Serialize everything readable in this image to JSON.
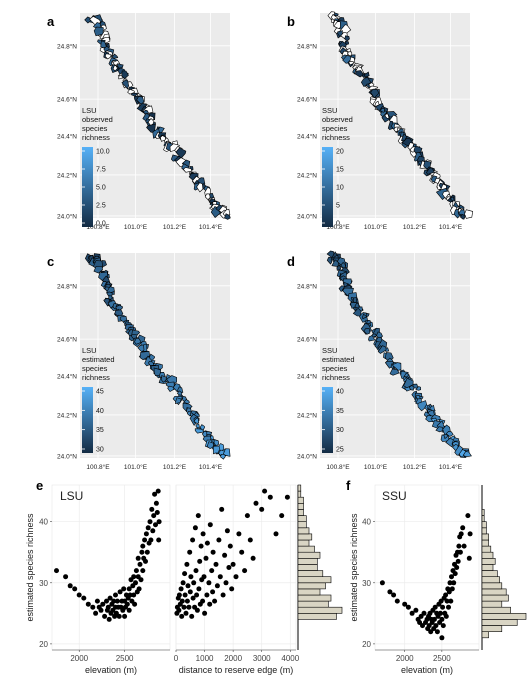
{
  "map_panels": [
    {
      "letter": "a",
      "legend_lines": [
        "LSU",
        "observed",
        "species",
        "richness"
      ],
      "legend_ticks": [
        "10.0",
        "7.5",
        "5.0",
        "2.5",
        "0.0"
      ]
    },
    {
      "letter": "b",
      "legend_lines": [
        "SSU",
        "observed",
        "species",
        "richness"
      ],
      "legend_ticks": [
        "20",
        "15",
        "10",
        "5",
        "0"
      ]
    },
    {
      "letter": "c",
      "legend_lines": [
        "LSU",
        "estimated",
        "species",
        "richness"
      ],
      "legend_ticks": [
        "45",
        "40",
        "35",
        "30"
      ]
    },
    {
      "letter": "d",
      "legend_lines": [
        "SSU",
        "estimated",
        "species",
        "richness"
      ],
      "legend_ticks": [
        "40",
        "35",
        "30",
        "25"
      ]
    }
  ],
  "map_axes": {
    "y_ticks": [
      "24.8°N",
      "24.6°N",
      "24.4°N",
      "24.2°N",
      "24.0°N"
    ],
    "x_ticks": [
      "100.8°E",
      "101.0°E",
      "101.2°E",
      "101.4°E"
    ]
  },
  "colors": {
    "panel_bg": "#ebebeb",
    "grid": "#ffffff",
    "ramp_low": "#132b43",
    "ramp_high": "#56b1f7",
    "hist_fill": "#d9d5c4",
    "points": "#000000"
  },
  "panel_e": {
    "letter": "e",
    "title": "LSU",
    "ylabel": "estimated species richness"
  },
  "panel_f": {
    "letter": "f",
    "title": "SSU"
  },
  "chart_data": [
    {
      "type": "scatter",
      "panel": "e-elevation",
      "title": "LSU",
      "xlabel": "elevation (m)",
      "ylabel": "estimated species richness",
      "xlim": [
        1700,
        3000
      ],
      "ylim": [
        19,
        46
      ],
      "x_ticks": [
        "2000",
        "2500"
      ],
      "y_ticks": [
        "20",
        "30",
        "40"
      ],
      "points": [
        [
          1750,
          32
        ],
        [
          1850,
          31
        ],
        [
          1900,
          29.5
        ],
        [
          1950,
          29
        ],
        [
          2000,
          28
        ],
        [
          2050,
          27.5
        ],
        [
          2100,
          26.5
        ],
        [
          2150,
          26
        ],
        [
          2180,
          25
        ],
        [
          2200,
          27
        ],
        [
          2220,
          26
        ],
        [
          2240,
          25.5
        ],
        [
          2260,
          26.5
        ],
        [
          2280,
          24.5
        ],
        [
          2300,
          27
        ],
        [
          2310,
          25.5
        ],
        [
          2320,
          26
        ],
        [
          2330,
          24
        ],
        [
          2340,
          27.5
        ],
        [
          2350,
          25
        ],
        [
          2360,
          26.5
        ],
        [
          2370,
          25.5
        ],
        [
          2380,
          27
        ],
        [
          2390,
          24.5
        ],
        [
          2400,
          26
        ],
        [
          2400,
          28
        ],
        [
          2410,
          25
        ],
        [
          2420,
          27
        ],
        [
          2430,
          26
        ],
        [
          2440,
          24.5
        ],
        [
          2450,
          28.5
        ],
        [
          2460,
          26
        ],
        [
          2470,
          27
        ],
        [
          2480,
          25.5
        ],
        [
          2490,
          29
        ],
        [
          2500,
          27
        ],
        [
          2500,
          24.5
        ],
        [
          2510,
          26
        ],
        [
          2520,
          28
        ],
        [
          2530,
          26.5
        ],
        [
          2540,
          27.5
        ],
        [
          2550,
          29
        ],
        [
          2550,
          25.5
        ],
        [
          2560,
          28
        ],
        [
          2570,
          30.5
        ],
        [
          2580,
          27
        ],
        [
          2590,
          29.5
        ],
        [
          2600,
          28
        ],
        [
          2600,
          31
        ],
        [
          2610,
          26.5
        ],
        [
          2620,
          30
        ],
        [
          2630,
          32
        ],
        [
          2640,
          28.5
        ],
        [
          2650,
          31
        ],
        [
          2650,
          34
        ],
        [
          2660,
          29
        ],
        [
          2670,
          33
        ],
        [
          2680,
          30.5
        ],
        [
          2690,
          35
        ],
        [
          2700,
          32
        ],
        [
          2700,
          36
        ],
        [
          2710,
          34
        ],
        [
          2720,
          37
        ],
        [
          2730,
          33.5
        ],
        [
          2740,
          38
        ],
        [
          2750,
          35
        ],
        [
          2760,
          39
        ],
        [
          2770,
          36.5
        ],
        [
          2780,
          40
        ],
        [
          2790,
          37
        ],
        [
          2800,
          42
        ],
        [
          2810,
          38.5
        ],
        [
          2820,
          41
        ],
        [
          2830,
          44.5
        ],
        [
          2840,
          39.5
        ],
        [
          2850,
          43
        ],
        [
          2860,
          41.5
        ],
        [
          2870,
          45
        ],
        [
          2875,
          37
        ],
        [
          2880,
          40
        ]
      ]
    },
    {
      "type": "scatter",
      "panel": "e-distance",
      "xlabel": "distance to reserve edge (m)",
      "ylabel": "estimated species richness",
      "xlim": [
        0,
        4200
      ],
      "ylim": [
        19,
        46
      ],
      "x_ticks": [
        "0",
        "1000",
        "2000",
        "3000",
        "4000"
      ],
      "points": [
        [
          30,
          25
        ],
        [
          50,
          26
        ],
        [
          80,
          27.5
        ],
        [
          100,
          25.5
        ],
        [
          120,
          28
        ],
        [
          150,
          26.5
        ],
        [
          180,
          29
        ],
        [
          200,
          24.5
        ],
        [
          220,
          27
        ],
        [
          250,
          30
        ],
        [
          280,
          26
        ],
        [
          300,
          31.5
        ],
        [
          320,
          28
        ],
        [
          350,
          25
        ],
        [
          380,
          33
        ],
        [
          400,
          27
        ],
        [
          420,
          29.5
        ],
        [
          450,
          26
        ],
        [
          480,
          35
        ],
        [
          500,
          28.5
        ],
        [
          520,
          31
        ],
        [
          550,
          24.5
        ],
        [
          580,
          37
        ],
        [
          600,
          27.5
        ],
        [
          620,
          30
        ],
        [
          650,
          26
        ],
        [
          680,
          39
        ],
        [
          700,
          32
        ],
        [
          720,
          28
        ],
        [
          750,
          25.5
        ],
        [
          780,
          41
        ],
        [
          800,
          29
        ],
        [
          830,
          33.5
        ],
        [
          850,
          26.5
        ],
        [
          880,
          36
        ],
        [
          900,
          30.5
        ],
        [
          930,
          27
        ],
        [
          950,
          38
        ],
        [
          980,
          31
        ],
        [
          1000,
          25
        ],
        [
          1050,
          34
        ],
        [
          1080,
          28
        ],
        [
          1100,
          36.5
        ],
        [
          1150,
          30
        ],
        [
          1180,
          26.5
        ],
        [
          1200,
          39.5
        ],
        [
          1250,
          32
        ],
        [
          1280,
          28.5
        ],
        [
          1300,
          35
        ],
        [
          1350,
          27
        ],
        [
          1400,
          33
        ],
        [
          1450,
          29.5
        ],
        [
          1500,
          37
        ],
        [
          1550,
          31
        ],
        [
          1600,
          42
        ],
        [
          1650,
          28
        ],
        [
          1700,
          34.5
        ],
        [
          1750,
          30
        ],
        [
          1800,
          38.5
        ],
        [
          1850,
          32.5
        ],
        [
          1900,
          36
        ],
        [
          1950,
          29
        ],
        [
          2000,
          33
        ],
        [
          2100,
          31
        ],
        [
          2200,
          38
        ],
        [
          2300,
          35
        ],
        [
          2400,
          32
        ],
        [
          2500,
          41
        ],
        [
          2600,
          37
        ],
        [
          2700,
          34
        ],
        [
          2800,
          43
        ],
        [
          3000,
          42
        ],
        [
          3100,
          45
        ],
        [
          3300,
          44
        ],
        [
          3500,
          38
        ],
        [
          3700,
          41
        ],
        [
          3900,
          44
        ]
      ]
    },
    {
      "type": "bar",
      "panel": "e-marginal-histogram",
      "orientation": "horizontal",
      "bins": [
        24,
        25,
        26,
        27,
        28,
        29,
        30,
        31,
        32,
        33,
        34,
        35,
        36,
        37,
        38,
        39,
        40,
        41,
        42,
        43,
        44,
        45
      ],
      "counts": [
        14,
        16,
        11,
        12,
        8,
        10,
        12,
        9,
        7,
        7,
        8,
        6,
        4,
        5,
        4,
        3,
        3,
        2,
        2,
        2,
        1,
        1
      ]
    },
    {
      "type": "scatter",
      "panel": "f-elevation",
      "title": "SSU",
      "xlabel": "elevation (m)",
      "ylabel": "estimated species richness",
      "xlim": [
        1600,
        3000
      ],
      "ylim": [
        19,
        46
      ],
      "x_ticks": [
        "2000",
        "2500"
      ],
      "y_ticks": [
        "20",
        "30",
        "40"
      ],
      "points": [
        [
          1700,
          30
        ],
        [
          1800,
          28.5
        ],
        [
          1850,
          28
        ],
        [
          1900,
          27
        ],
        [
          2000,
          26.5
        ],
        [
          2050,
          26
        ],
        [
          2100,
          25
        ],
        [
          2150,
          25.5
        ],
        [
          2180,
          24
        ],
        [
          2200,
          23.5
        ],
        [
          2220,
          24.5
        ],
        [
          2240,
          23
        ],
        [
          2260,
          25
        ],
        [
          2280,
          23.5
        ],
        [
          2300,
          24
        ],
        [
          2310,
          22.5
        ],
        [
          2320,
          24.5
        ],
        [
          2330,
          23
        ],
        [
          2340,
          25
        ],
        [
          2350,
          22
        ],
        [
          2360,
          24
        ],
        [
          2370,
          23.5
        ],
        [
          2380,
          25.5
        ],
        [
          2390,
          22.5
        ],
        [
          2400,
          24
        ],
        [
          2410,
          26
        ],
        [
          2420,
          23
        ],
        [
          2430,
          25
        ],
        [
          2440,
          22
        ],
        [
          2450,
          24.5
        ],
        [
          2460,
          26.5
        ],
        [
          2470,
          23.5
        ],
        [
          2480,
          25
        ],
        [
          2490,
          27
        ],
        [
          2500,
          24
        ],
        [
          2500,
          21
        ],
        [
          2510,
          26
        ],
        [
          2520,
          23
        ],
        [
          2530,
          27.5
        ],
        [
          2540,
          25
        ],
        [
          2550,
          28
        ],
        [
          2560,
          24.5
        ],
        [
          2570,
          27
        ],
        [
          2580,
          29
        ],
        [
          2590,
          26
        ],
        [
          2600,
          28.5
        ],
        [
          2610,
          30
        ],
        [
          2620,
          27
        ],
        [
          2630,
          31
        ],
        [
          2640,
          29
        ],
        [
          2650,
          32
        ],
        [
          2660,
          30
        ],
        [
          2670,
          33
        ],
        [
          2680,
          31.5
        ],
        [
          2690,
          34.5
        ],
        [
          2700,
          32.5
        ],
        [
          2710,
          35
        ],
        [
          2720,
          33.5
        ],
        [
          2730,
          36
        ],
        [
          2740,
          37.5
        ],
        [
          2750,
          35
        ],
        [
          2760,
          38
        ],
        [
          2780,
          39
        ],
        [
          2800,
          36
        ],
        [
          2850,
          41
        ],
        [
          2870,
          34
        ],
        [
          2880,
          38
        ]
      ]
    },
    {
      "type": "bar",
      "panel": "f-marginal-histogram",
      "orientation": "horizontal",
      "bins": [
        21,
        22,
        23,
        24,
        25,
        26,
        27,
        28,
        29,
        30,
        31,
        32,
        33,
        34,
        35,
        36,
        37,
        38,
        39,
        40,
        41
      ],
      "counts": [
        3,
        9,
        16,
        20,
        13,
        9,
        12,
        11,
        9,
        8,
        7,
        5,
        6,
        5,
        4,
        3,
        3,
        2,
        2,
        1,
        1
      ]
    }
  ]
}
